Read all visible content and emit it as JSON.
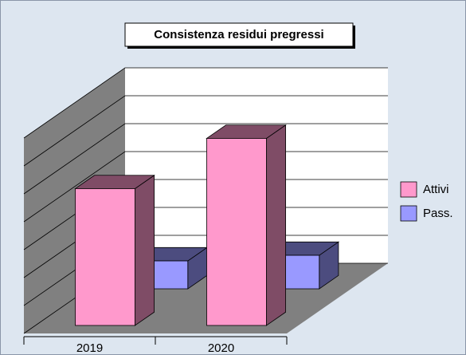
{
  "chart_data": {
    "type": "bar3d",
    "title": "Consistenza residui pregressi",
    "categories": [
      "2019",
      "2020"
    ],
    "series": [
      {
        "name": "Attivi",
        "color": "#ff99cc",
        "values": [
          4.9,
          6.7
        ]
      },
      {
        "name": "Pass.",
        "color": "#9999ff",
        "values": [
          1.0,
          1.2
        ]
      }
    ],
    "ylim": [
      0,
      7
    ],
    "yticks": [
      0,
      1,
      2,
      3,
      4,
      5,
      6,
      7
    ],
    "grid": true
  }
}
